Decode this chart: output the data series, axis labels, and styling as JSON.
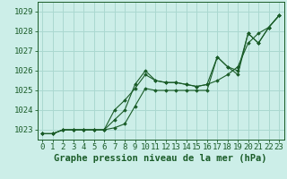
{
  "background_color": "#cceee8",
  "grid_color": "#aad8d0",
  "line_color": "#1a5c28",
  "title": "Graphe pression niveau de la mer (hPa)",
  "xlim": [
    -0.5,
    23.5
  ],
  "ylim": [
    1022.5,
    1029.5
  ],
  "xticks": [
    0,
    1,
    2,
    3,
    4,
    5,
    6,
    7,
    8,
    9,
    10,
    11,
    12,
    13,
    14,
    15,
    16,
    17,
    18,
    19,
    20,
    21,
    22,
    23
  ],
  "yticks": [
    1023,
    1024,
    1025,
    1026,
    1027,
    1028,
    1029
  ],
  "series": [
    [
      1022.8,
      1022.8,
      1023.0,
      1023.0,
      1023.0,
      1023.0,
      1023.0,
      1023.1,
      1023.3,
      1024.2,
      1025.1,
      1025.0,
      1025.0,
      1025.0,
      1025.0,
      1025.0,
      1025.0,
      1026.7,
      1026.2,
      1025.8,
      1027.9,
      1027.4,
      1028.2,
      1028.8
    ],
    [
      1022.8,
      1022.8,
      1023.0,
      1023.0,
      1023.0,
      1023.0,
      1023.0,
      1024.0,
      1024.5,
      1025.1,
      1025.8,
      1025.5,
      1025.4,
      1025.4,
      1025.3,
      1025.2,
      1025.3,
      1025.5,
      1025.8,
      1026.2,
      1027.4,
      1027.9,
      1028.2,
      1028.8
    ],
    [
      1022.8,
      1022.8,
      1023.0,
      1023.0,
      1023.0,
      1023.0,
      1023.0,
      1023.5,
      1024.0,
      1025.3,
      1026.0,
      1025.5,
      1025.4,
      1025.4,
      1025.3,
      1025.2,
      1025.3,
      1026.7,
      1026.2,
      1026.0,
      1027.9,
      1027.4,
      1028.2,
      1028.8
    ]
  ],
  "title_fontsize": 7.5,
  "tick_fontsize": 6.5
}
